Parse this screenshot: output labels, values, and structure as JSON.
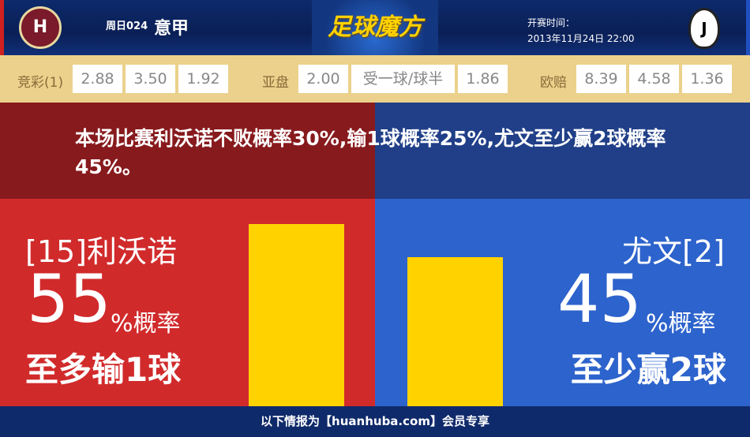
{
  "header": {
    "home_logo": "LIVORNO CALCIO 1915",
    "away_logo": "JUVENTUS",
    "round": "周日024",
    "league": "意甲",
    "brand": "足球魔方",
    "time_label": "开赛时间：",
    "time_value": "2013年11月24日 22:00"
  },
  "odds": {
    "jc_label": "竞彩(1)",
    "jc": [
      "2.88",
      "3.50",
      "1.92"
    ],
    "ya_label": "亚盘",
    "ya": [
      "2.00",
      "受一球/球半",
      "1.86"
    ],
    "eu_label": "欧赔",
    "eu": [
      "8.39",
      "4.58",
      "1.36"
    ]
  },
  "summary": "本场比赛利沃诺不败概率30%,输1球概率25%,尤文至少赢2球概率45%。",
  "home": {
    "name": "[15]利沃诺",
    "pct": "55",
    "pct_value": 55,
    "unit": "%概率",
    "outcome": "至多输1球"
  },
  "away": {
    "name": "尤文[2]",
    "pct": "45",
    "pct_value": 45,
    "unit": "%概率",
    "outcome": "至少赢2球"
  },
  "colors": {
    "home": "#d12a2b",
    "away": "#2d63cc",
    "bar": "#ffd200"
  },
  "footer": "以下情报为【huanhuba.com】会员专享"
}
